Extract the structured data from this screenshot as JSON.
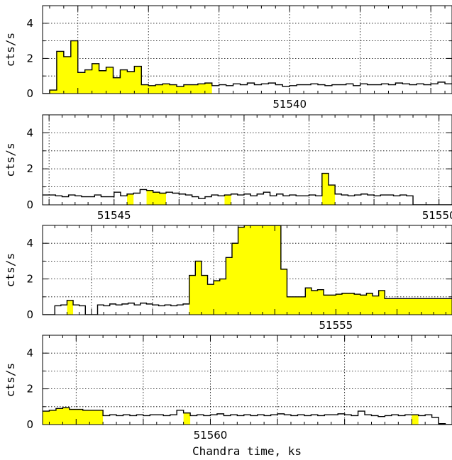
{
  "chart_data": {
    "type": "area",
    "xlabel": "Chandra time, ks",
    "ylabel": "cts/s",
    "grid": true,
    "fill_color": "#ffff00",
    "line_color": "#000000",
    "panels": [
      {
        "ylabel": "cts/s",
        "xlim": [
          51536.5,
          51542.3
        ],
        "ylim": [
          0,
          5
        ],
        "yticks": [
          0,
          2,
          4
        ],
        "xtick_labels": [
          {
            "value": 51540,
            "label": "51540"
          }
        ],
        "series": [
          {
            "x": [
              51536.5,
              51536.6,
              51536.7,
              51536.8,
              51536.9,
              51537.0,
              51537.1,
              51537.2,
              51537.3,
              51537.4,
              51537.5,
              51537.6,
              51537.7,
              51537.8,
              51537.9,
              51538.0,
              51538.1,
              51538.2,
              51538.3,
              51538.4,
              51538.5,
              51538.6,
              51538.7,
              51538.8,
              51538.9,
              51539.0,
              51539.1,
              51539.2,
              51539.3,
              51539.4,
              51539.5,
              51539.6,
              51539.7,
              51539.8,
              51539.9,
              51540.0,
              51540.1,
              51540.2,
              51540.3,
              51540.4,
              51540.5,
              51540.6,
              51540.7,
              51540.8,
              51540.9,
              51541.0,
              51541.1,
              51541.2,
              51541.3,
              51541.4,
              51541.5,
              51541.6,
              51541.7,
              51541.8,
              51541.9,
              51542.0,
              51542.1,
              51542.2,
              51542.3
            ],
            "y": [
              0.0,
              0.2,
              2.4,
              2.1,
              3.0,
              1.2,
              1.35,
              1.7,
              1.3,
              1.5,
              0.9,
              1.35,
              1.25,
              1.55,
              0.5,
              0.45,
              0.5,
              0.55,
              0.5,
              0.4,
              0.5,
              0.5,
              0.55,
              0.6,
              0.45,
              0.5,
              0.45,
              0.55,
              0.5,
              0.6,
              0.5,
              0.55,
              0.6,
              0.5,
              0.4,
              0.45,
              0.5,
              0.5,
              0.55,
              0.5,
              0.45,
              0.5,
              0.5,
              0.55,
              0.45,
              0.55,
              0.5,
              0.5,
              0.55,
              0.5,
              0.6,
              0.55,
              0.5,
              0.55,
              0.5,
              0.55,
              0.65,
              0.55,
              0.55
            ],
            "shaded": [
              [
                51536.6,
                51538.9
              ]
            ]
          }
        ]
      },
      {
        "ylabel": "cts/s",
        "xlim": [
          51543.9,
          51550.2
        ],
        "ylim": [
          0,
          5
        ],
        "yticks": [
          0,
          2,
          4
        ],
        "xtick_labels": [
          {
            "value": 51545,
            "label": "51545"
          },
          {
            "value": 51550,
            "label": "51550"
          }
        ],
        "series": [
          {
            "x": [
              51543.9,
              51544.0,
              51544.1,
              51544.2,
              51544.3,
              51544.4,
              51544.5,
              51544.6,
              51544.7,
              51544.8,
              51544.9,
              51545.0,
              51545.1,
              51545.2,
              51545.3,
              51545.4,
              51545.5,
              51545.6,
              51545.7,
              51545.8,
              51545.9,
              51546.0,
              51546.1,
              51546.2,
              51546.3,
              51546.4,
              51546.5,
              51546.6,
              51546.7,
              51546.8,
              51546.9,
              51547.0,
              51547.1,
              51547.2,
              51547.3,
              51547.4,
              51547.5,
              51547.6,
              51547.7,
              51547.8,
              51547.9,
              51548.0,
              51548.1,
              51548.2,
              51548.3,
              51548.4,
              51548.5,
              51548.6,
              51548.7,
              51548.8,
              51548.9,
              51549.0,
              51549.1,
              51549.2,
              51549.3,
              51549.4,
              51549.5,
              51549.6,
              51549.7,
              51549.8,
              51549.9,
              51550.0,
              51550.1,
              51550.2
            ],
            "y": [
              0.55,
              0.55,
              0.5,
              0.45,
              0.55,
              0.5,
              0.45,
              0.45,
              0.55,
              0.45,
              0.45,
              0.7,
              0.5,
              0.6,
              0.65,
              0.85,
              0.8,
              0.7,
              0.65,
              0.7,
              0.65,
              0.6,
              0.55,
              0.45,
              0.35,
              0.45,
              0.55,
              0.5,
              0.55,
              0.6,
              0.55,
              0.6,
              0.5,
              0.6,
              0.7,
              0.5,
              0.6,
              0.5,
              0.55,
              0.5,
              0.5,
              0.55,
              0.5,
              1.75,
              1.1,
              0.6,
              0.55,
              0.5,
              0.55,
              0.6,
              0.55,
              0.5,
              0.55,
              0.55,
              0.5,
              0.55,
              0.5,
              0.0,
              0.0,
              0.0,
              0.0,
              0.0,
              0.0,
              0.0
            ],
            "shaded": [
              [
                51545.2,
                51545.3
              ],
              [
                51545.5,
                51545.8
              ],
              [
                51546.7,
                51546.8
              ],
              [
                51548.2,
                51548.4
              ]
            ]
          }
        ]
      },
      {
        "ylabel": "cts/s",
        "xlim": [
          51550.2,
          51556.9
        ],
        "ylim": [
          0,
          5
        ],
        "yticks": [
          0,
          2,
          4
        ],
        "xtick_labels": [
          {
            "value": 51555,
            "label": "51555"
          }
        ],
        "series": [
          {
            "x": [
              51550.2,
              51550.3,
              51550.4,
              51550.5,
              51550.6,
              51550.7,
              51550.8,
              51550.9,
              51551.0,
              51551.1,
              51551.2,
              51551.3,
              51551.4,
              51551.5,
              51551.6,
              51551.7,
              51551.8,
              51551.9,
              51552.0,
              51552.1,
              51552.2,
              51552.3,
              51552.4,
              51552.5,
              51552.6,
              51552.7,
              51552.8,
              51552.9,
              51553.0,
              51553.1,
              51553.2,
              51553.3,
              51553.4,
              51553.5,
              51553.6,
              51553.7,
              51553.8,
              51553.9,
              51554.0,
              51554.1,
              51554.2,
              51554.3,
              51554.4,
              51554.5,
              51554.6,
              51554.7,
              51554.8,
              51554.9,
              51555.0,
              51555.1,
              51555.2,
              51555.3,
              51555.4,
              51555.5,
              51555.6,
              51555.7,
              51555.8,
              51555.9,
              51556.0,
              51556.1,
              51556.2,
              51556.3,
              51556.4,
              51556.5,
              51556.6,
              51556.7,
              51556.8,
              51556.9
            ],
            "y": [
              0.0,
              0.0,
              0.5,
              0.55,
              0.8,
              0.55,
              0.5,
              0.0,
              0.0,
              0.55,
              0.5,
              0.6,
              0.55,
              0.6,
              0.65,
              0.55,
              0.65,
              0.6,
              0.55,
              0.5,
              0.55,
              0.5,
              0.55,
              0.6,
              2.2,
              3.0,
              2.2,
              1.7,
              1.9,
              2.0,
              3.2,
              4.0,
              4.9,
              5.0,
              5.0,
              5.0,
              5.0,
              5.0,
              5.0,
              2.55,
              1.0,
              1.0,
              1.0,
              1.5,
              1.35,
              1.4,
              1.1,
              1.1,
              1.15,
              1.2,
              1.2,
              1.15,
              1.1,
              1.2,
              1.05,
              1.35,
              0.9,
              0.9,
              0.9,
              0.9,
              0.9,
              0.9,
              0.9,
              0.9,
              0.9,
              0.9,
              0.9,
              0.9
            ],
            "shaded": [
              [
                51550.6,
                51550.7
              ],
              [
                51552.6,
                51556.9
              ]
            ]
          }
        ]
      },
      {
        "ylabel": "cts/s",
        "xlim": [
          51557.5,
          51563.6
        ],
        "ylim": [
          0,
          5
        ],
        "yticks": [
          0,
          2,
          4
        ],
        "xtick_labels": [
          {
            "value": 51560,
            "label": "51560"
          }
        ],
        "series": [
          {
            "x": [
              51557.5,
              51557.6,
              51557.7,
              51557.8,
              51557.9,
              51558.0,
              51558.1,
              51558.2,
              51558.3,
              51558.4,
              51558.5,
              51558.6,
              51558.7,
              51558.8,
              51558.9,
              51559.0,
              51559.1,
              51559.2,
              51559.3,
              51559.4,
              51559.5,
              51559.6,
              51559.7,
              51559.8,
              51559.9,
              51560.0,
              51560.1,
              51560.2,
              51560.3,
              51560.4,
              51560.5,
              51560.6,
              51560.7,
              51560.8,
              51560.9,
              51561.0,
              51561.1,
              51561.2,
              51561.3,
              51561.4,
              51561.5,
              51561.6,
              51561.7,
              51561.8,
              51561.9,
              51562.0,
              51562.1,
              51562.2,
              51562.3,
              51562.4,
              51562.5,
              51562.6,
              51562.7,
              51562.8,
              51562.9,
              51563.0,
              51563.1,
              51563.2,
              51563.3,
              51563.4,
              51563.5,
              51563.6
            ],
            "y": [
              0.75,
              0.8,
              0.9,
              0.95,
              0.85,
              0.85,
              0.8,
              0.8,
              0.8,
              0.5,
              0.55,
              0.5,
              0.55,
              0.5,
              0.55,
              0.5,
              0.55,
              0.55,
              0.5,
              0.55,
              0.8,
              0.65,
              0.5,
              0.55,
              0.5,
              0.55,
              0.6,
              0.5,
              0.55,
              0.5,
              0.55,
              0.5,
              0.55,
              0.5,
              0.55,
              0.6,
              0.55,
              0.5,
              0.55,
              0.5,
              0.55,
              0.5,
              0.55,
              0.55,
              0.6,
              0.55,
              0.5,
              0.75,
              0.55,
              0.5,
              0.45,
              0.5,
              0.55,
              0.5,
              0.55,
              0.55,
              0.5,
              0.55,
              0.4,
              0.05,
              0.0,
              0.0
            ],
            "shaded": [
              [
                51557.5,
                51558.4
              ],
              [
                51559.6,
                51559.7
              ],
              [
                51563.0,
                51563.1
              ]
            ]
          }
        ]
      }
    ]
  }
}
